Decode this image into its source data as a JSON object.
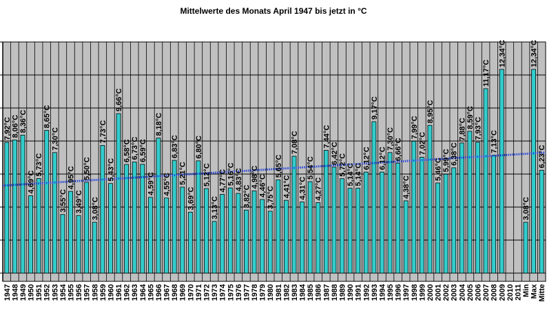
{
  "chart_data": {
    "type": "bar",
    "title": "Mittelwerte des Monats April 1947 bis jetzt in °C",
    "xlabel": "",
    "ylabel": "",
    "ylim": [
      -0.5,
      14
    ],
    "grid": true,
    "legend": "none",
    "colors": {
      "bar": "#33cccc",
      "bar_edge": "#000000",
      "plot_bg": "#c0c0c0",
      "column_line": "#000000",
      "trend": "#1f3fd6"
    },
    "categories": [
      "1947",
      "1948",
      "1949",
      "1950",
      "1951",
      "1952",
      "1953",
      "1954",
      "1955",
      "1956",
      "1957",
      "1958",
      "1959",
      "1960",
      "1961",
      "1962",
      "1963",
      "1964",
      "1965",
      "1966",
      "1967",
      "1968",
      "1969",
      "1970",
      "1971",
      "1972",
      "1973",
      "1974",
      "1975",
      "1976",
      "1977",
      "1978",
      "1979",
      "1980",
      "1981",
      "1982",
      "1983",
      "1984",
      "1985",
      "1986",
      "1987",
      "1988",
      "1989",
      "1990",
      "1991",
      "1992",
      "1993",
      "1994",
      "1995",
      "1996",
      "1997",
      "1998",
      "1999",
      "2000",
      "2001",
      "2002",
      "2003",
      "2004",
      "2005",
      "2006",
      "2007",
      "2008",
      "2009",
      "2010",
      "2011",
      "Min",
      "Max",
      "Mitte"
    ],
    "values": [
      7.92,
      8.06,
      8.36,
      4.69,
      5.73,
      8.65,
      7.3,
      3.55,
      4.95,
      3.49,
      5.5,
      3.08,
      7.73,
      5.43,
      9.66,
      6.58,
      6.73,
      6.59,
      4.59,
      8.18,
      4.55,
      6.83,
      5.21,
      3.69,
      6.8,
      5.12,
      3.13,
      4.77,
      5.16,
      4.83,
      3.82,
      4.98,
      4.46,
      3.75,
      5.65,
      4.41,
      7.08,
      4.31,
      5.54,
      4.27,
      7.44,
      6.42,
      5.72,
      5.14,
      5.14,
      6.12,
      9.17,
      6.12,
      7.3,
      6.66,
      4.38,
      7.99,
      7.02,
      8.95,
      5.46,
      5.99,
      6.38,
      7.88,
      8.59,
      7.93,
      11.17,
      7.13,
      12.34,
      null,
      null,
      3.08,
      12.34,
      6.23
    ],
    "labels": [
      "7,92°C",
      "8,06°C",
      "8,36°C",
      "4,69°C",
      "5,73°C",
      "8,65°C",
      "7,30°C",
      "3,55°C",
      "4,95°C",
      "3,49°C",
      "5,50°C",
      "3,08°C",
      "7,73°C",
      "5,43°C",
      "9,66°C",
      "6,58°C",
      "6,73°C",
      "6,59°C",
      "4,59°C",
      "8,18°C",
      "4,55°C",
      "6,83°C",
      "5,21°C",
      "3,69°C",
      "6,80°C",
      "5,12°C",
      "3,13°C",
      "4,77°C",
      "5,16°C",
      "4,83°C",
      "3,82°C",
      "4,98°C",
      "4,46°C",
      "3,75°C",
      "5,65°C",
      "4,41°C",
      "7,08°C",
      "4,31°C",
      "5,54°C",
      "4,27°C",
      "7,44°C",
      "6,42°C",
      "5,72°C",
      "5,14°C",
      "5,14°C",
      "6,12°C",
      "9,17°C",
      "6,12°C",
      "7,30°C",
      "6,66°C",
      "4,38°C",
      "7,99°C",
      "7,02°C",
      "8,95°C",
      "5,46°C",
      "5,99°C",
      "6,38°C",
      "7,88°C",
      "8,59°C",
      "7,93°C",
      "11,17°C",
      "7,13°C",
      "12,34°C",
      "",
      "",
      "3,08°C",
      "12,34°C",
      "6,23°C"
    ],
    "trendline": {
      "start": 5.3,
      "end": 7.3
    }
  }
}
